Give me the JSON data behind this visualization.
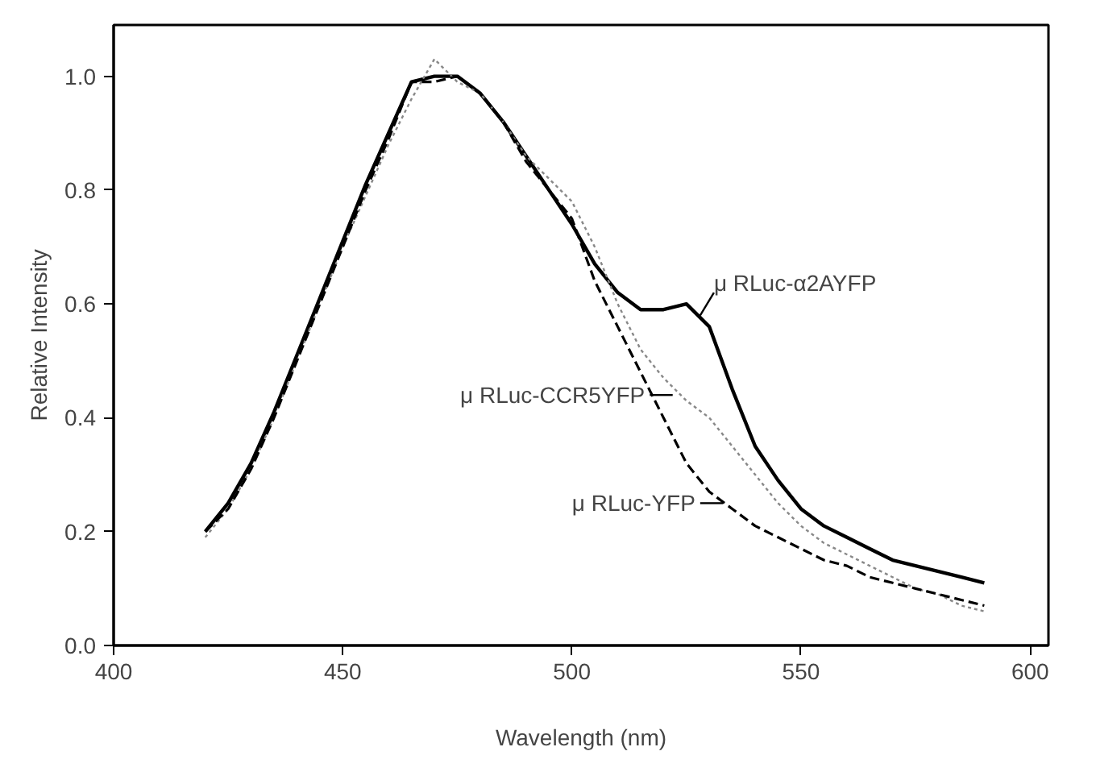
{
  "chart_data": {
    "type": "line",
    "xlabel": "Wavelength (nm)",
    "ylabel": "Relative Intensity",
    "x": [
      420,
      425,
      430,
      435,
      440,
      445,
      450,
      455,
      460,
      465,
      470,
      475,
      480,
      485,
      490,
      495,
      500,
      505,
      510,
      515,
      520,
      525,
      530,
      535,
      540,
      545,
      550,
      555,
      560,
      565,
      570,
      575,
      580,
      585,
      590
    ],
    "xlim": [
      400,
      604
    ],
    "xticks": [
      400,
      450,
      500,
      550,
      600
    ],
    "ylim": [
      0,
      1.09
    ],
    "yticks": [
      {
        "value": 0,
        "label": "0.0"
      },
      0.2,
      0.4,
      0.6,
      0.8,
      {
        "value": 1,
        "label": "1.0"
      }
    ],
    "series": [
      {
        "color": "#000000",
        "line_style": "solid",
        "values": [
          0.2,
          0.25,
          0.32,
          0.41,
          0.51,
          0.61,
          0.71,
          0.81,
          0.9,
          0.99,
          1.0,
          1.0,
          0.97,
          0.92,
          0.86,
          0.8,
          0.74,
          0.67,
          0.62,
          0.59,
          0.59,
          0.6,
          0.56,
          0.45,
          0.35,
          0.29,
          0.24,
          0.21,
          0.19,
          0.17,
          0.15,
          0.14,
          0.13,
          0.12,
          0.11
        ]
      },
      {
        "color": "#888888",
        "line_style": "dotted",
        "values": [
          0.19,
          0.24,
          0.31,
          0.4,
          0.5,
          0.6,
          0.7,
          0.79,
          0.88,
          0.96,
          1.03,
          0.99,
          0.97,
          0.92,
          0.86,
          0.82,
          0.78,
          0.7,
          0.6,
          0.52,
          0.47,
          0.43,
          0.4,
          0.35,
          0.3,
          0.25,
          0.21,
          0.18,
          0.16,
          0.14,
          0.12,
          0.1,
          0.09,
          0.07,
          0.06
        ]
      },
      {
        "color": "#000000",
        "line_style": "dashed",
        "values": [
          0.2,
          0.24,
          0.31,
          0.4,
          0.5,
          0.6,
          0.7,
          0.8,
          0.89,
          0.99,
          0.99,
          1.0,
          0.97,
          0.92,
          0.85,
          0.8,
          0.75,
          0.64,
          0.56,
          0.48,
          0.4,
          0.32,
          0.27,
          0.24,
          0.21,
          0.19,
          0.17,
          0.15,
          0.14,
          0.12,
          0.11,
          0.1,
          0.09,
          0.08,
          0.07
        ]
      }
    ],
    "annotations": [
      {
        "text": "μ RLuc-α2AYFP",
        "x": 528,
        "y": 0.58
      },
      {
        "text": "μ RLuc-CCR5YFP",
        "x": 522,
        "y": 0.44
      },
      {
        "text": "μ RLuc-YFP",
        "x": 533,
        "y": 0.25
      }
    ],
    "grid": false
  }
}
